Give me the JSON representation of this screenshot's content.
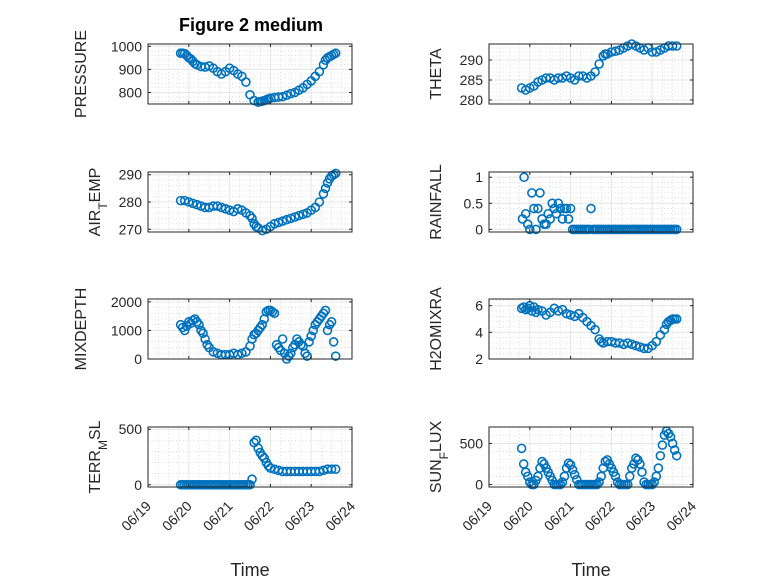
{
  "figure": {
    "title": "Figure 2 medium",
    "marker_color": "#0072BD"
  },
  "chart_data": [
    {
      "type": "scatter",
      "ylabel": "PRESSURE",
      "ylim": [
        750,
        1010
      ],
      "yticks": [
        800,
        900,
        1000
      ],
      "xlim": [
        0,
        5
      ],
      "xticks": [
        0,
        1,
        2,
        3,
        4,
        5
      ],
      "series": [
        {
          "x": [
            0.8,
            0.85,
            0.9,
            0.95,
            1.0,
            1.05,
            1.1,
            1.15,
            1.2,
            1.3,
            1.4,
            1.5,
            1.6,
            1.7,
            1.8,
            1.9,
            2.0,
            2.1,
            2.2,
            2.3,
            2.4,
            2.5,
            2.6,
            2.7,
            2.75,
            2.8,
            2.85,
            2.9,
            2.95,
            3.0,
            3.1,
            3.2,
            3.3,
            3.4,
            3.5,
            3.6,
            3.7,
            3.8,
            3.9,
            4.0,
            4.1,
            4.2,
            4.3,
            4.35,
            4.4,
            4.45,
            4.5,
            4.55,
            4.6
          ],
          "y": [
            970,
            970,
            968,
            960,
            950,
            945,
            935,
            925,
            920,
            912,
            910,
            915,
            905,
            890,
            880,
            890,
            905,
            895,
            880,
            870,
            845,
            790,
            765,
            758,
            760,
            762,
            765,
            768,
            772,
            775,
            778,
            780,
            782,
            788,
            795,
            800,
            810,
            820,
            835,
            850,
            870,
            890,
            920,
            940,
            950,
            955,
            960,
            965,
            970
          ]
        }
      ]
    },
    {
      "type": "scatter",
      "ylabel": "THETA",
      "ylim": [
        279,
        294
      ],
      "yticks": [
        280,
        285,
        290
      ],
      "xlim": [
        0,
        5
      ],
      "xticks": [
        0,
        1,
        2,
        3,
        4,
        5
      ],
      "series": [
        {
          "x": [
            0.8,
            0.9,
            1.0,
            1.1,
            1.2,
            1.3,
            1.4,
            1.5,
            1.6,
            1.7,
            1.8,
            1.9,
            2.0,
            2.1,
            2.2,
            2.3,
            2.4,
            2.5,
            2.6,
            2.7,
            2.8,
            2.85,
            2.9,
            3.0,
            3.1,
            3.2,
            3.3,
            3.4,
            3.5,
            3.6,
            3.7,
            3.8,
            3.9,
            4.0,
            4.1,
            4.2,
            4.3,
            4.4,
            4.5,
            4.6
          ],
          "y": [
            283,
            282.5,
            283,
            283.5,
            284.5,
            285,
            285.5,
            285.5,
            285,
            285.5,
            285.5,
            286,
            285.5,
            285,
            286,
            286,
            285.5,
            286,
            287,
            289,
            291,
            291.5,
            291.5,
            292,
            292.2,
            292.5,
            293,
            293.5,
            294,
            293.5,
            293,
            292.5,
            293,
            292,
            292,
            292.5,
            293,
            293.5,
            293.5,
            293.5
          ]
        }
      ]
    },
    {
      "type": "scatter",
      "ylabel": "AIR_TEMP",
      "ylim": [
        269,
        291
      ],
      "yticks": [
        270,
        280,
        290
      ],
      "xlim": [
        0,
        5
      ],
      "xticks": [
        0,
        1,
        2,
        3,
        4,
        5
      ],
      "series": [
        {
          "x": [
            0.8,
            0.9,
            1.0,
            1.1,
            1.2,
            1.3,
            1.4,
            1.5,
            1.6,
            1.7,
            1.8,
            1.9,
            2.0,
            2.1,
            2.2,
            2.3,
            2.4,
            2.5,
            2.55,
            2.6,
            2.65,
            2.7,
            2.8,
            2.9,
            3.0,
            3.1,
            3.2,
            3.3,
            3.4,
            3.5,
            3.6,
            3.7,
            3.8,
            3.9,
            4.0,
            4.1,
            4.2,
            4.3,
            4.35,
            4.4,
            4.45,
            4.5,
            4.55,
            4.6
          ],
          "y": [
            280.5,
            280.5,
            280,
            279.5,
            279,
            278.5,
            278,
            278,
            278.5,
            278.5,
            278,
            277.5,
            277,
            276.5,
            277.5,
            277,
            276,
            275,
            274,
            272,
            271,
            270.5,
            269.5,
            270,
            271,
            272,
            272.5,
            273,
            273.5,
            274,
            274.5,
            275,
            275.5,
            276,
            277,
            278,
            280,
            283,
            285,
            287,
            288.5,
            289.5,
            290,
            290.5
          ]
        }
      ]
    },
    {
      "type": "scatter",
      "ylabel": "RAINFALL",
      "ylim": [
        -0.05,
        1.1
      ],
      "yticks": [
        0,
        0.5,
        1
      ],
      "xlim": [
        0,
        5
      ],
      "xticks": [
        0,
        1,
        2,
        3,
        4,
        5
      ],
      "series": [
        {
          "x": [
            0.82,
            0.86,
            0.9,
            0.95,
            1.0,
            1.05,
            1.1,
            1.15,
            1.2,
            1.25,
            1.3,
            1.35,
            1.4,
            1.45,
            1.5,
            1.55,
            1.6,
            1.65,
            1.7,
            1.75,
            1.8,
            1.85,
            1.9,
            1.95,
            2.0,
            2.05,
            2.1,
            2.15,
            2.2,
            2.25,
            2.3,
            2.35,
            2.4,
            2.45,
            2.5,
            2.55,
            2.6,
            2.65,
            2.7,
            2.75,
            2.8,
            2.85,
            2.9,
            2.95,
            3.0,
            3.05,
            3.1,
            3.15,
            3.2,
            3.25,
            3.3,
            3.35,
            3.4,
            3.45,
            3.5,
            3.55,
            3.6,
            3.65,
            3.7,
            3.75,
            3.8,
            3.85,
            3.9,
            3.95,
            4.0,
            4.05,
            4.1,
            4.15,
            4.2,
            4.25,
            4.3,
            4.35,
            4.4,
            4.45,
            4.5,
            4.55,
            4.6
          ],
          "y": [
            0.2,
            1.0,
            0.3,
            0.1,
            0,
            0.7,
            0.4,
            0,
            0.4,
            0.7,
            0.2,
            0.1,
            0.1,
            0.3,
            0.2,
            0.5,
            0.4,
            0.3,
            0.5,
            0.4,
            0.2,
            0.4,
            0.4,
            0.2,
            0.4,
            0,
            0,
            0,
            0,
            0,
            0,
            0,
            0,
            0,
            0.4,
            0,
            0,
            0,
            0,
            0,
            0,
            0,
            0,
            0,
            0,
            0,
            0,
            0,
            0,
            0,
            0,
            0,
            0,
            0,
            0,
            0,
            0,
            0,
            0,
            0,
            0,
            0,
            0,
            0,
            0,
            0,
            0,
            0,
            0,
            0,
            0,
            0,
            0,
            0,
            0,
            0,
            0
          ]
        }
      ]
    },
    {
      "type": "scatter",
      "ylabel": "MIXDEPTH",
      "ylim": [
        0,
        2100
      ],
      "yticks": [
        0,
        1000,
        2000
      ],
      "xlim": [
        0,
        5
      ],
      "xticks": [
        0,
        1,
        2,
        3,
        4,
        5
      ],
      "series": [
        {
          "x": [
            0.8,
            0.85,
            0.9,
            0.95,
            1.0,
            1.05,
            1.1,
            1.15,
            1.2,
            1.25,
            1.3,
            1.35,
            1.4,
            1.45,
            1.5,
            1.6,
            1.7,
            1.8,
            1.9,
            2.0,
            2.1,
            2.2,
            2.3,
            2.4,
            2.5,
            2.55,
            2.6,
            2.65,
            2.7,
            2.75,
            2.8,
            2.85,
            2.9,
            2.95,
            3.0,
            3.05,
            3.1,
            3.15,
            3.2,
            3.25,
            3.3,
            3.35,
            3.4,
            3.45,
            3.5,
            3.55,
            3.6,
            3.65,
            3.7,
            3.75,
            3.8,
            3.85,
            3.9,
            3.95,
            4.0,
            4.05,
            4.1,
            4.15,
            4.2,
            4.25,
            4.3,
            4.35,
            4.4,
            4.45,
            4.5,
            4.55,
            4.6
          ],
          "y": [
            1200,
            1100,
            1000,
            1150,
            1300,
            1250,
            1350,
            1400,
            1300,
            1200,
            1000,
            900,
            700,
            500,
            400,
            250,
            200,
            150,
            150,
            150,
            200,
            150,
            200,
            250,
            450,
            700,
            850,
            900,
            1000,
            1100,
            1200,
            1400,
            1650,
            1700,
            1700,
            1650,
            1600,
            500,
            400,
            300,
            700,
            200,
            0,
            100,
            200,
            400,
            500,
            700,
            600,
            500,
            450,
            200,
            100,
            600,
            800,
            1000,
            1200,
            1300,
            1400,
            1500,
            1600,
            1700,
            1000,
            1200,
            1300,
            600,
            100
          ]
        }
      ]
    },
    {
      "type": "scatter",
      "ylabel": "H2OMIXRA",
      "ylim": [
        2,
        6.5
      ],
      "yticks": [
        2,
        4,
        6
      ],
      "xlim": [
        0,
        5
      ],
      "xticks": [
        0,
        1,
        2,
        3,
        4,
        5
      ],
      "series": [
        {
          "x": [
            0.8,
            0.85,
            0.9,
            0.95,
            1.0,
            1.05,
            1.1,
            1.15,
            1.2,
            1.3,
            1.4,
            1.5,
            1.6,
            1.7,
            1.8,
            1.9,
            2.0,
            2.1,
            2.2,
            2.3,
            2.4,
            2.5,
            2.6,
            2.7,
            2.75,
            2.8,
            2.9,
            3.0,
            3.1,
            3.2,
            3.3,
            3.4,
            3.5,
            3.6,
            3.7,
            3.8,
            3.9,
            4.0,
            4.1,
            4.2,
            4.3,
            4.35,
            4.4,
            4.45,
            4.5,
            4.55,
            4.6
          ],
          "y": [
            5.8,
            5.9,
            5.7,
            5.8,
            6.0,
            5.6,
            5.9,
            5.5,
            5.7,
            5.6,
            5.3,
            5.5,
            5.8,
            5.6,
            5.7,
            5.4,
            5.3,
            5.2,
            5.4,
            5.1,
            4.8,
            4.5,
            4.2,
            3.5,
            3.3,
            3.2,
            3.3,
            3.3,
            3.2,
            3.2,
            3.1,
            3.2,
            3.1,
            3.0,
            2.9,
            2.8,
            2.8,
            3.0,
            3.3,
            3.8,
            4.2,
            4.6,
            4.8,
            4.9,
            5.0,
            5.0,
            5.0
          ]
        }
      ]
    },
    {
      "type": "scatter",
      "ylabel": "TERR_MSL",
      "ylim": [
        -20,
        520
      ],
      "yticks": [
        0,
        500
      ],
      "xlim": [
        0,
        5
      ],
      "xticks": [
        0,
        1,
        2,
        3,
        4,
        5
      ],
      "xlabel": "Time",
      "xticklabels": [
        "06/19",
        "06/20",
        "06/21",
        "06/22",
        "06/23",
        "06/24"
      ],
      "series": [
        {
          "x": [
            0.8,
            0.85,
            0.9,
            0.95,
            1.0,
            1.05,
            1.1,
            1.15,
            1.2,
            1.25,
            1.3,
            1.35,
            1.4,
            1.45,
            1.5,
            1.55,
            1.6,
            1.65,
            1.7,
            1.75,
            1.8,
            1.85,
            1.9,
            1.95,
            2.0,
            2.05,
            2.1,
            2.15,
            2.2,
            2.25,
            2.3,
            2.35,
            2.4,
            2.45,
            2.5,
            2.55,
            2.6,
            2.65,
            2.7,
            2.75,
            2.8,
            2.85,
            2.9,
            2.95,
            3.0,
            3.1,
            3.2,
            3.3,
            3.4,
            3.5,
            3.6,
            3.7,
            3.8,
            3.9,
            4.0,
            4.1,
            4.2,
            4.3,
            4.4,
            4.5,
            4.6
          ],
          "y": [
            0,
            0,
            0,
            0,
            0,
            0,
            0,
            0,
            0,
            0,
            0,
            0,
            0,
            0,
            0,
            0,
            0,
            0,
            0,
            0,
            0,
            0,
            0,
            0,
            0,
            0,
            0,
            0,
            0,
            0,
            0,
            0,
            0,
            0,
            0,
            50,
            380,
            400,
            330,
            290,
            260,
            240,
            200,
            170,
            150,
            140,
            130,
            120,
            120,
            120,
            120,
            120,
            120,
            120,
            120,
            120,
            120,
            130,
            140,
            140,
            140
          ]
        }
      ]
    },
    {
      "type": "scatter",
      "ylabel": "SUN_FLUX",
      "ylim": [
        -30,
        700
      ],
      "yticks": [
        0,
        500
      ],
      "xlim": [
        0,
        5
      ],
      "xticks": [
        0,
        1,
        2,
        3,
        4,
        5
      ],
      "xlabel": "Time",
      "xticklabels": [
        "06/19",
        "06/20",
        "06/21",
        "06/22",
        "06/23",
        "06/24"
      ],
      "series": [
        {
          "x": [
            0.8,
            0.85,
            0.9,
            0.95,
            1.0,
            1.05,
            1.1,
            1.15,
            1.2,
            1.25,
            1.3,
            1.35,
            1.4,
            1.45,
            1.5,
            1.55,
            1.6,
            1.65,
            1.7,
            1.75,
            1.8,
            1.85,
            1.9,
            1.95,
            2.0,
            2.05,
            2.1,
            2.15,
            2.2,
            2.25,
            2.3,
            2.35,
            2.4,
            2.45,
            2.5,
            2.55,
            2.6,
            2.65,
            2.7,
            2.75,
            2.8,
            2.85,
            2.9,
            2.95,
            3.0,
            3.05,
            3.1,
            3.15,
            3.2,
            3.25,
            3.3,
            3.35,
            3.4,
            3.45,
            3.5,
            3.55,
            3.6,
            3.65,
            3.7,
            3.75,
            3.8,
            3.85,
            3.9,
            3.95,
            4.0,
            4.05,
            4.1,
            4.15,
            4.2,
            4.25,
            4.3,
            4.35,
            4.4,
            4.45,
            4.5,
            4.55,
            4.6
          ],
          "y": [
            440,
            250,
            150,
            100,
            30,
            0,
            0,
            50,
            100,
            200,
            280,
            250,
            200,
            150,
            100,
            50,
            0,
            0,
            0,
            0,
            30,
            100,
            200,
            260,
            240,
            180,
            120,
            60,
            0,
            0,
            0,
            0,
            0,
            0,
            0,
            0,
            0,
            0,
            30,
            100,
            200,
            280,
            300,
            250,
            200,
            150,
            100,
            30,
            0,
            0,
            0,
            0,
            0,
            100,
            200,
            250,
            320,
            300,
            250,
            150,
            30,
            0,
            0,
            0,
            0,
            30,
            100,
            200,
            350,
            480,
            600,
            650,
            620,
            580,
            500,
            420,
            350
          ]
        }
      ]
    }
  ]
}
